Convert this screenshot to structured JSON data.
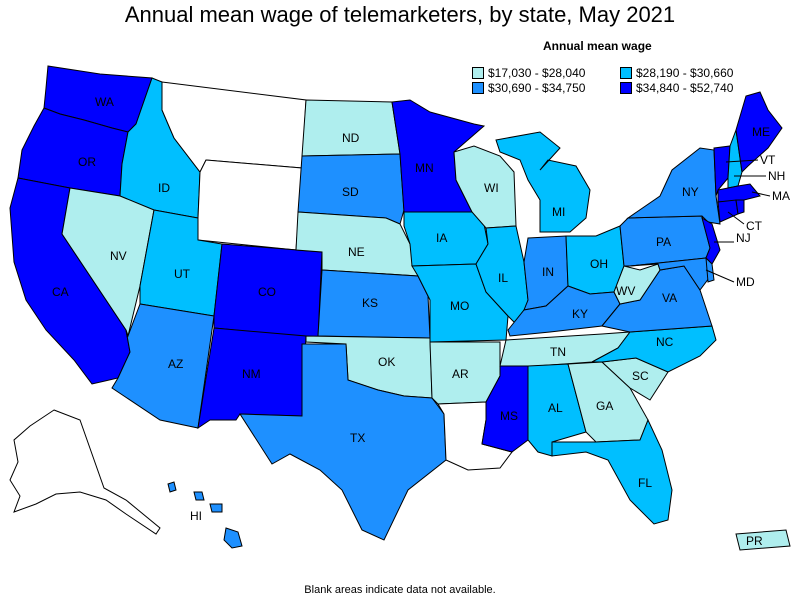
{
  "title": "Annual mean wage of telemarketers, by state, May 2021",
  "legend": {
    "title": "Annual mean wage",
    "items": [
      {
        "label": "$17,030 - $28,040",
        "color": "#afeeee"
      },
      {
        "label": "$28,190 - $30,660",
        "color": "#00bfff"
      },
      {
        "label": "$30,690 - $34,750",
        "color": "#1e90ff"
      },
      {
        "label": "$34,840 - $52,740",
        "color": "#0000ff"
      }
    ]
  },
  "footnote": "Blank areas indicate data not available.",
  "states": {
    "WA": {
      "label": "WA",
      "tier": 4
    },
    "OR": {
      "label": "OR",
      "tier": 4
    },
    "CA": {
      "label": "CA",
      "tier": 4
    },
    "ID": {
      "label": "ID",
      "tier": 2
    },
    "NV": {
      "label": "NV",
      "tier": 1
    },
    "MT": {
      "label": "",
      "tier": 0
    },
    "WY": {
      "label": "",
      "tier": 0
    },
    "UT": {
      "label": "UT",
      "tier": 2
    },
    "AZ": {
      "label": "AZ",
      "tier": 3
    },
    "CO": {
      "label": "CO",
      "tier": 4
    },
    "NM": {
      "label": "NM",
      "tier": 4
    },
    "ND": {
      "label": "ND",
      "tier": 1
    },
    "SD": {
      "label": "SD",
      "tier": 3
    },
    "NE": {
      "label": "NE",
      "tier": 1
    },
    "KS": {
      "label": "KS",
      "tier": 3
    },
    "OK": {
      "label": "OK",
      "tier": 1
    },
    "TX": {
      "label": "TX",
      "tier": 3
    },
    "MN": {
      "label": "MN",
      "tier": 4
    },
    "IA": {
      "label": "IA",
      "tier": 2
    },
    "MO": {
      "label": "MO",
      "tier": 2
    },
    "AR": {
      "label": "AR",
      "tier": 1
    },
    "LA": {
      "label": "",
      "tier": 0
    },
    "WI": {
      "label": "WI",
      "tier": 1
    },
    "IL": {
      "label": "IL",
      "tier": 2
    },
    "MI": {
      "label": "MI",
      "tier": 2
    },
    "IN": {
      "label": "IN",
      "tier": 3
    },
    "OH": {
      "label": "OH",
      "tier": 2
    },
    "KY": {
      "label": "KY",
      "tier": 3
    },
    "TN": {
      "label": "TN",
      "tier": 1
    },
    "MS": {
      "label": "MS",
      "tier": 4
    },
    "AL": {
      "label": "AL",
      "tier": 2
    },
    "GA": {
      "label": "GA",
      "tier": 1
    },
    "FL": {
      "label": "FL",
      "tier": 2
    },
    "SC": {
      "label": "SC",
      "tier": 1
    },
    "NC": {
      "label": "NC",
      "tier": 2
    },
    "VA": {
      "label": "VA",
      "tier": 3
    },
    "WV": {
      "label": "WV",
      "tier": 1
    },
    "PA": {
      "label": "PA",
      "tier": 3
    },
    "NY": {
      "label": "NY",
      "tier": 3
    },
    "VT": {
      "label": "VT",
      "tier": 4
    },
    "NH": {
      "label": "NH",
      "tier": 2
    },
    "ME": {
      "label": "ME",
      "tier": 4
    },
    "MA": {
      "label": "MA",
      "tier": 4
    },
    "CT": {
      "label": "CT",
      "tier": 4
    },
    "RI": {
      "label": "",
      "tier": 4
    },
    "NJ": {
      "label": "NJ",
      "tier": 4
    },
    "DE": {
      "label": "",
      "tier": 3
    },
    "MD": {
      "label": "MD",
      "tier": 3
    },
    "AK": {
      "label": "",
      "tier": 0
    },
    "HI": {
      "label": "HI",
      "tier": 3
    },
    "PR": {
      "label": "PR",
      "tier": 1
    }
  }
}
